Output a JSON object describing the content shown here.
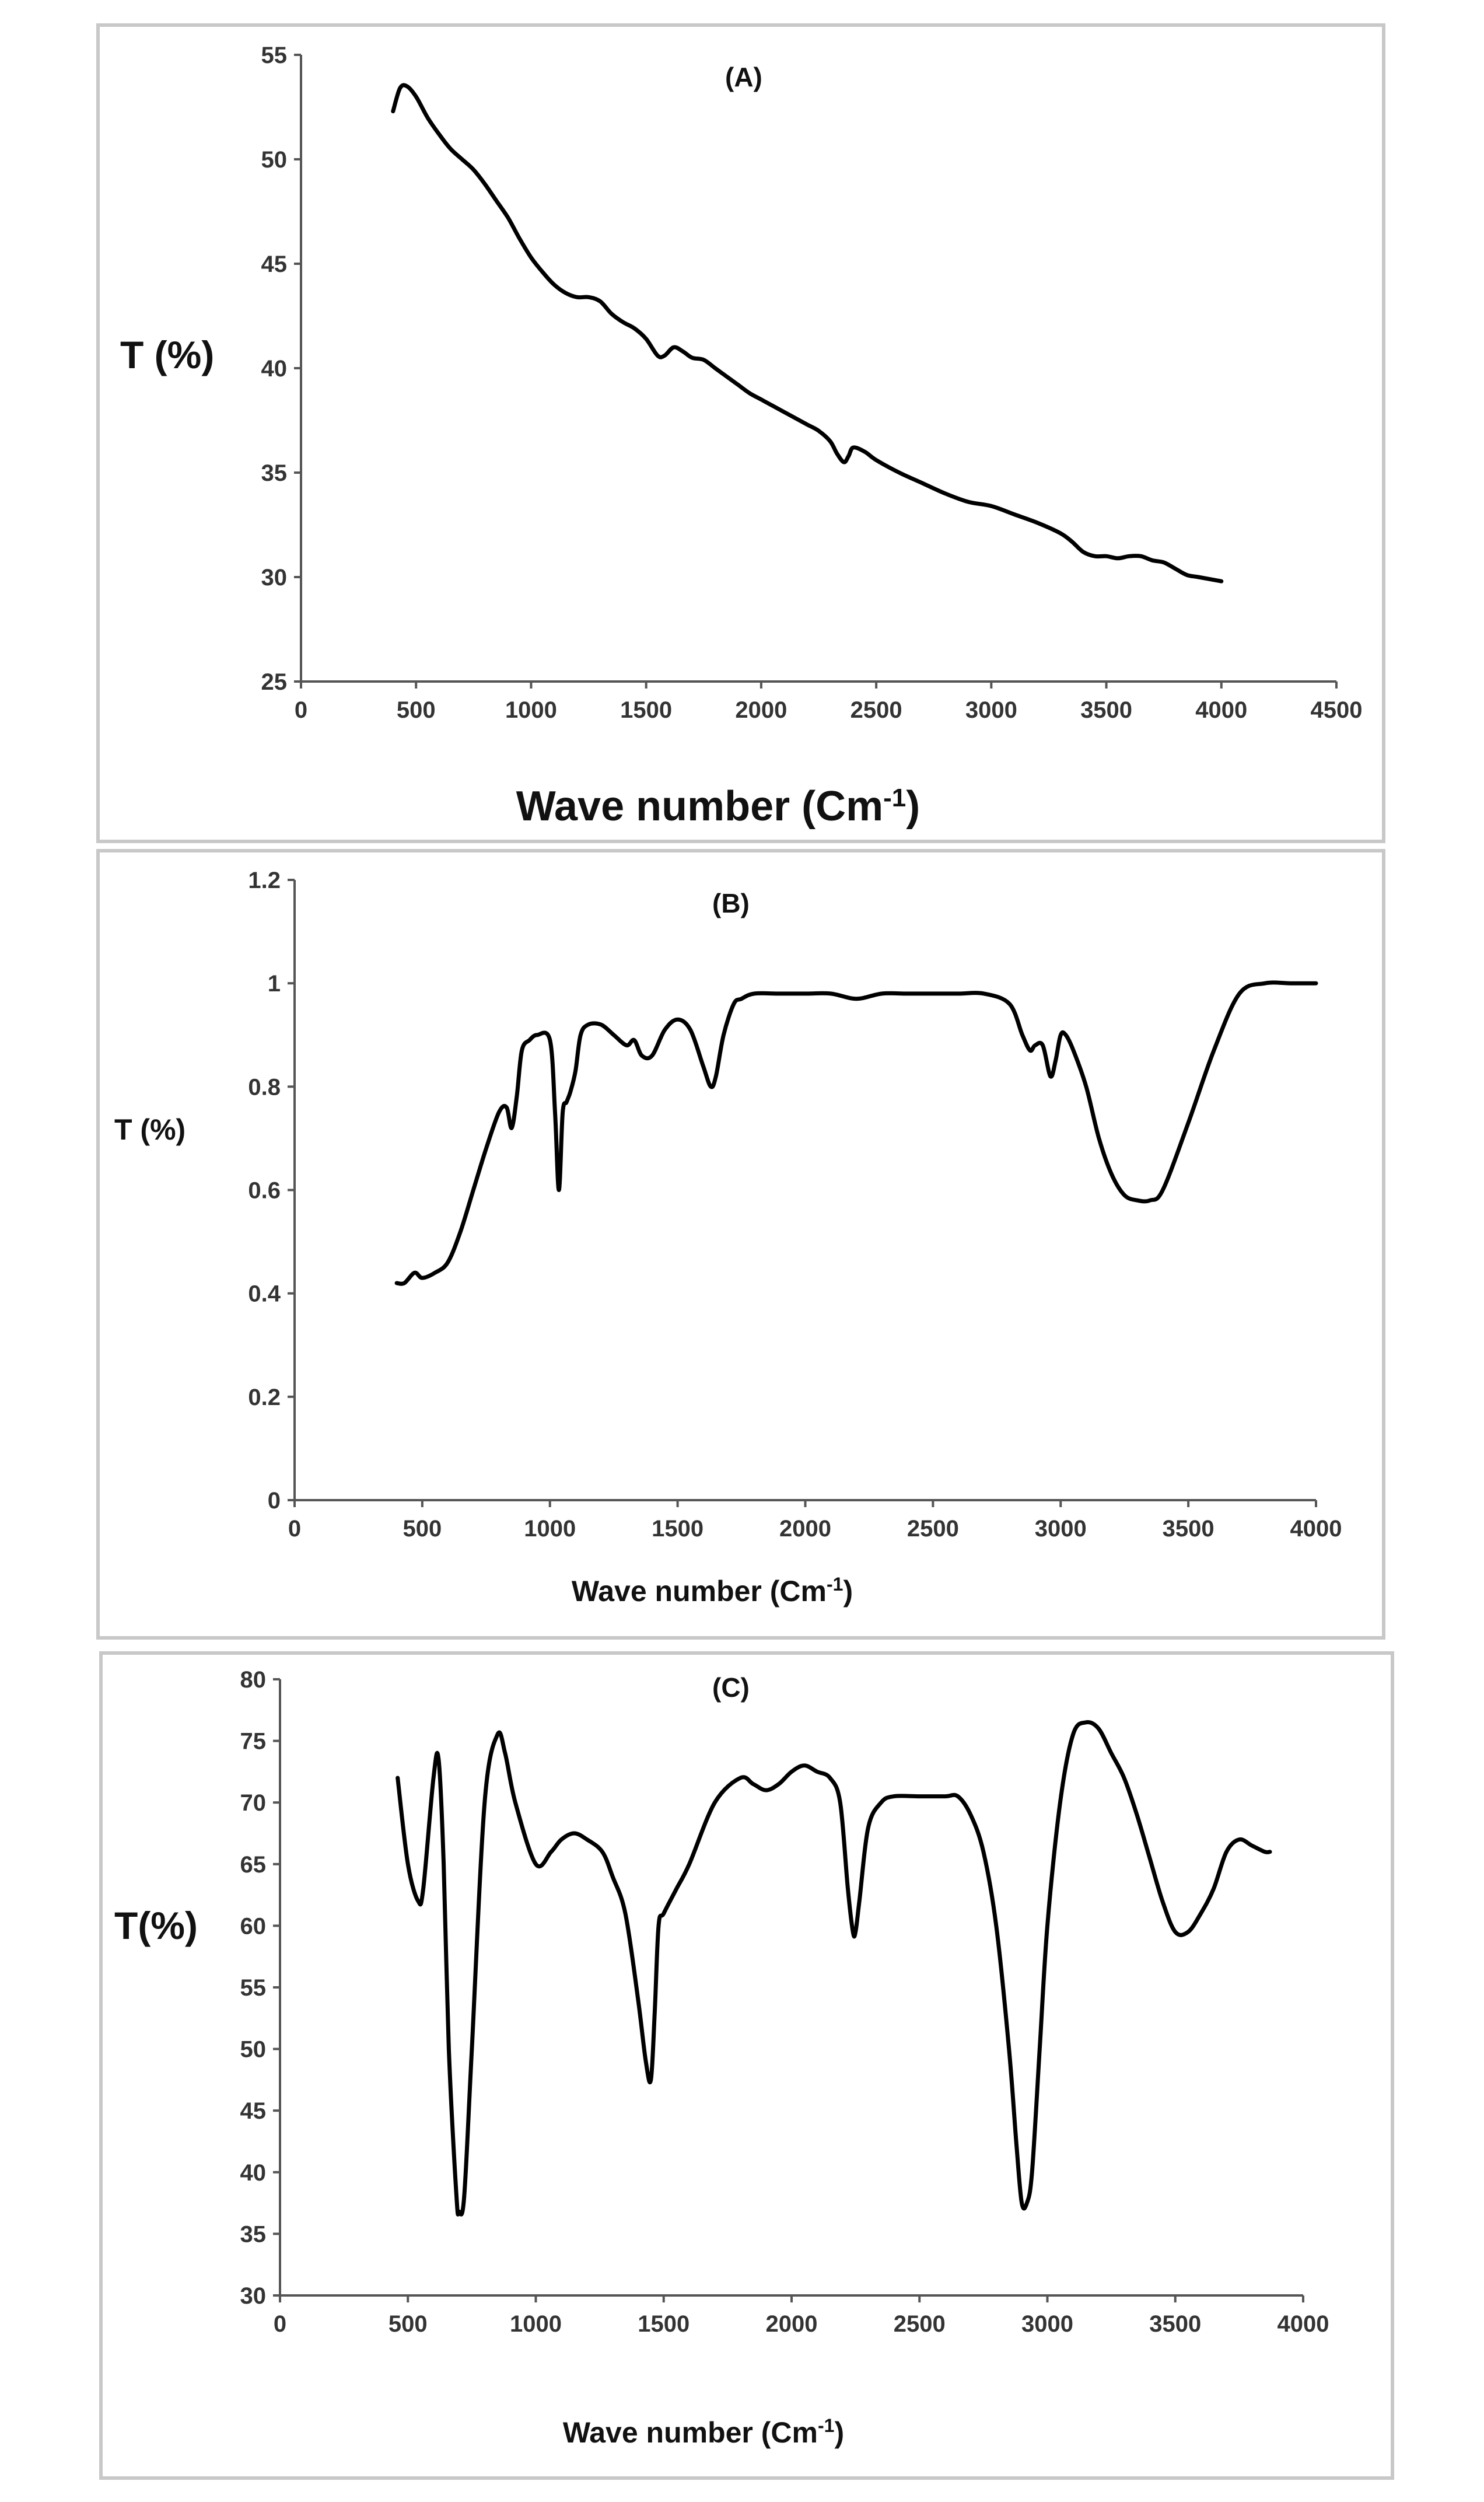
{
  "chart_data": [
    {
      "type": "line",
      "title": "(A)",
      "ylabel": "T (%)",
      "xlabel_main": "Wave number (Cm",
      "xlabel_sup": "-1",
      "xlabel_end": ")",
      "xlim": [
        0,
        4500
      ],
      "ylim": [
        25,
        55
      ],
      "xticks": [
        0,
        500,
        1000,
        1500,
        2000,
        2500,
        3000,
        3500,
        4000,
        4500
      ],
      "yticks": [
        25,
        30,
        35,
        40,
        45,
        50,
        55
      ],
      "series": [
        {
          "name": "A",
          "x": [
            400,
            430,
            460,
            500,
            550,
            600,
            650,
            700,
            750,
            800,
            850,
            900,
            950,
            1000,
            1050,
            1100,
            1150,
            1200,
            1250,
            1300,
            1350,
            1400,
            1450,
            1500,
            1550,
            1580,
            1620,
            1660,
            1700,
            1750,
            1800,
            1850,
            1900,
            1950,
            2000,
            2050,
            2100,
            2150,
            2200,
            2250,
            2300,
            2330,
            2360,
            2380,
            2400,
            2450,
            2500,
            2600,
            2700,
            2800,
            2900,
            3000,
            3100,
            3200,
            3300,
            3350,
            3400,
            3450,
            3500,
            3550,
            3600,
            3650,
            3700,
            3750,
            3800,
            3850,
            3900,
            4000
          ],
          "y": [
            52.3,
            53.4,
            53.5,
            53.0,
            52.0,
            51.2,
            50.5,
            50.0,
            49.5,
            48.8,
            48.0,
            47.2,
            46.2,
            45.3,
            44.6,
            44.0,
            43.6,
            43.4,
            43.4,
            43.2,
            42.6,
            42.2,
            41.9,
            41.4,
            40.6,
            40.6,
            41.0,
            40.8,
            40.5,
            40.4,
            40.0,
            39.6,
            39.2,
            38.8,
            38.5,
            38.2,
            37.9,
            37.6,
            37.3,
            37.0,
            36.5,
            35.9,
            35.5,
            35.8,
            36.2,
            36.0,
            35.6,
            35.0,
            34.5,
            34.0,
            33.6,
            33.4,
            33.0,
            32.6,
            32.1,
            31.7,
            31.2,
            31.0,
            31.0,
            30.9,
            31.0,
            31.0,
            30.8,
            30.7,
            30.4,
            30.1,
            30.0,
            29.8
          ]
        }
      ]
    },
    {
      "type": "line",
      "title": "(B)",
      "ylabel": "T (%)",
      "xlabel_main": "Wave number (Cm",
      "xlabel_sup": "-1",
      "xlabel_end": ")",
      "xlim": [
        0,
        4000
      ],
      "ylim": [
        0,
        1.2
      ],
      "xticks": [
        0,
        500,
        1000,
        1500,
        2000,
        2500,
        3000,
        3500,
        4000
      ],
      "yticks": [
        0,
        0.2,
        0.4,
        0.6,
        0.8,
        1,
        1.2
      ],
      "series": [
        {
          "name": "B",
          "x": [
            400,
            430,
            470,
            500,
            550,
            600,
            650,
            700,
            750,
            800,
            830,
            850,
            870,
            890,
            920,
            950,
            1000,
            1020,
            1035,
            1050,
            1065,
            1080,
            1100,
            1120,
            1150,
            1200,
            1250,
            1300,
            1330,
            1360,
            1400,
            1450,
            1500,
            1550,
            1600,
            1630,
            1650,
            1680,
            1720,
            1750,
            1800,
            1900,
            2000,
            2100,
            2200,
            2300,
            2400,
            2500,
            2600,
            2700,
            2800,
            2850,
            2880,
            2900,
            2930,
            2960,
            2980,
            3000,
            3020,
            3050,
            3100,
            3150,
            3200,
            3250,
            3300,
            3350,
            3400,
            3500,
            3600,
            3700,
            3800,
            3900,
            4000
          ],
          "y": [
            0.42,
            0.42,
            0.44,
            0.43,
            0.44,
            0.46,
            0.52,
            0.6,
            0.68,
            0.75,
            0.76,
            0.72,
            0.78,
            0.87,
            0.89,
            0.9,
            0.89,
            0.75,
            0.6,
            0.75,
            0.77,
            0.79,
            0.83,
            0.9,
            0.92,
            0.92,
            0.9,
            0.88,
            0.89,
            0.86,
            0.86,
            0.91,
            0.93,
            0.91,
            0.84,
            0.8,
            0.82,
            0.9,
            0.96,
            0.97,
            0.98,
            0.98,
            0.98,
            0.98,
            0.97,
            0.98,
            0.98,
            0.98,
            0.98,
            0.98,
            0.96,
            0.9,
            0.87,
            0.88,
            0.88,
            0.82,
            0.85,
            0.9,
            0.9,
            0.87,
            0.8,
            0.7,
            0.63,
            0.59,
            0.58,
            0.58,
            0.6,
            0.73,
            0.87,
            0.98,
            1.0,
            1.0,
            1.0
          ]
        }
      ]
    },
    {
      "type": "line",
      "title": "(C)",
      "ylabel": "T(%)",
      "xlabel_main": "Wave number (Cm",
      "xlabel_sup": "-1",
      "xlabel_end": ")",
      "xlim": [
        0,
        4000
      ],
      "ylim": [
        30,
        80
      ],
      "xticks": [
        0,
        500,
        1000,
        1500,
        2000,
        2500,
        3000,
        3500,
        4000
      ],
      "yticks": [
        30,
        35,
        40,
        45,
        50,
        55,
        60,
        65,
        70,
        75,
        80
      ],
      "series": [
        {
          "name": "C",
          "x": [
            460,
            500,
            540,
            560,
            600,
            620,
            640,
            660,
            690,
            700,
            720,
            750,
            800,
            850,
            880,
            920,
            1000,
            1060,
            1100,
            1150,
            1200,
            1260,
            1300,
            1350,
            1400,
            1430,
            1450,
            1465,
            1480,
            1500,
            1550,
            1600,
            1700,
            1800,
            1850,
            1900,
            1950,
            2000,
            2050,
            2100,
            2150,
            2190,
            2220,
            2240,
            2250,
            2265,
            2300,
            2350,
            2400,
            2500,
            2600,
            2650,
            2700,
            2750,
            2800,
            2850,
            2880,
            2900,
            2920,
            2940,
            2970,
            3000,
            3050,
            3100,
            3150,
            3200,
            3250,
            3300,
            3350,
            3400,
            3450,
            3500,
            3550,
            3600,
            3650,
            3700,
            3750,
            3800,
            3850,
            3870
          ],
          "y": [
            72,
            65,
            62,
            63,
            72,
            73.5,
            65,
            50,
            38,
            36.8,
            38,
            50,
            70,
            75.5,
            74,
            70,
            65,
            66,
            67,
            67.5,
            67,
            66,
            64,
            61,
            54,
            49,
            47.5,
            53,
            60,
            61,
            63,
            65,
            70,
            72,
            71.5,
            71,
            71.5,
            72.5,
            73,
            72.5,
            72,
            70,
            63,
            59.5,
            59.5,
            62,
            68,
            70,
            70.5,
            70.5,
            70.5,
            70.5,
            69,
            66,
            60,
            50,
            42,
            37.5,
            37.5,
            40,
            50,
            60,
            70,
            75.5,
            76.5,
            76,
            74,
            72,
            69,
            65.5,
            62,
            59.5,
            59.5,
            61,
            63,
            66,
            67,
            66.5,
            66,
            66
          ]
        }
      ]
    }
  ]
}
